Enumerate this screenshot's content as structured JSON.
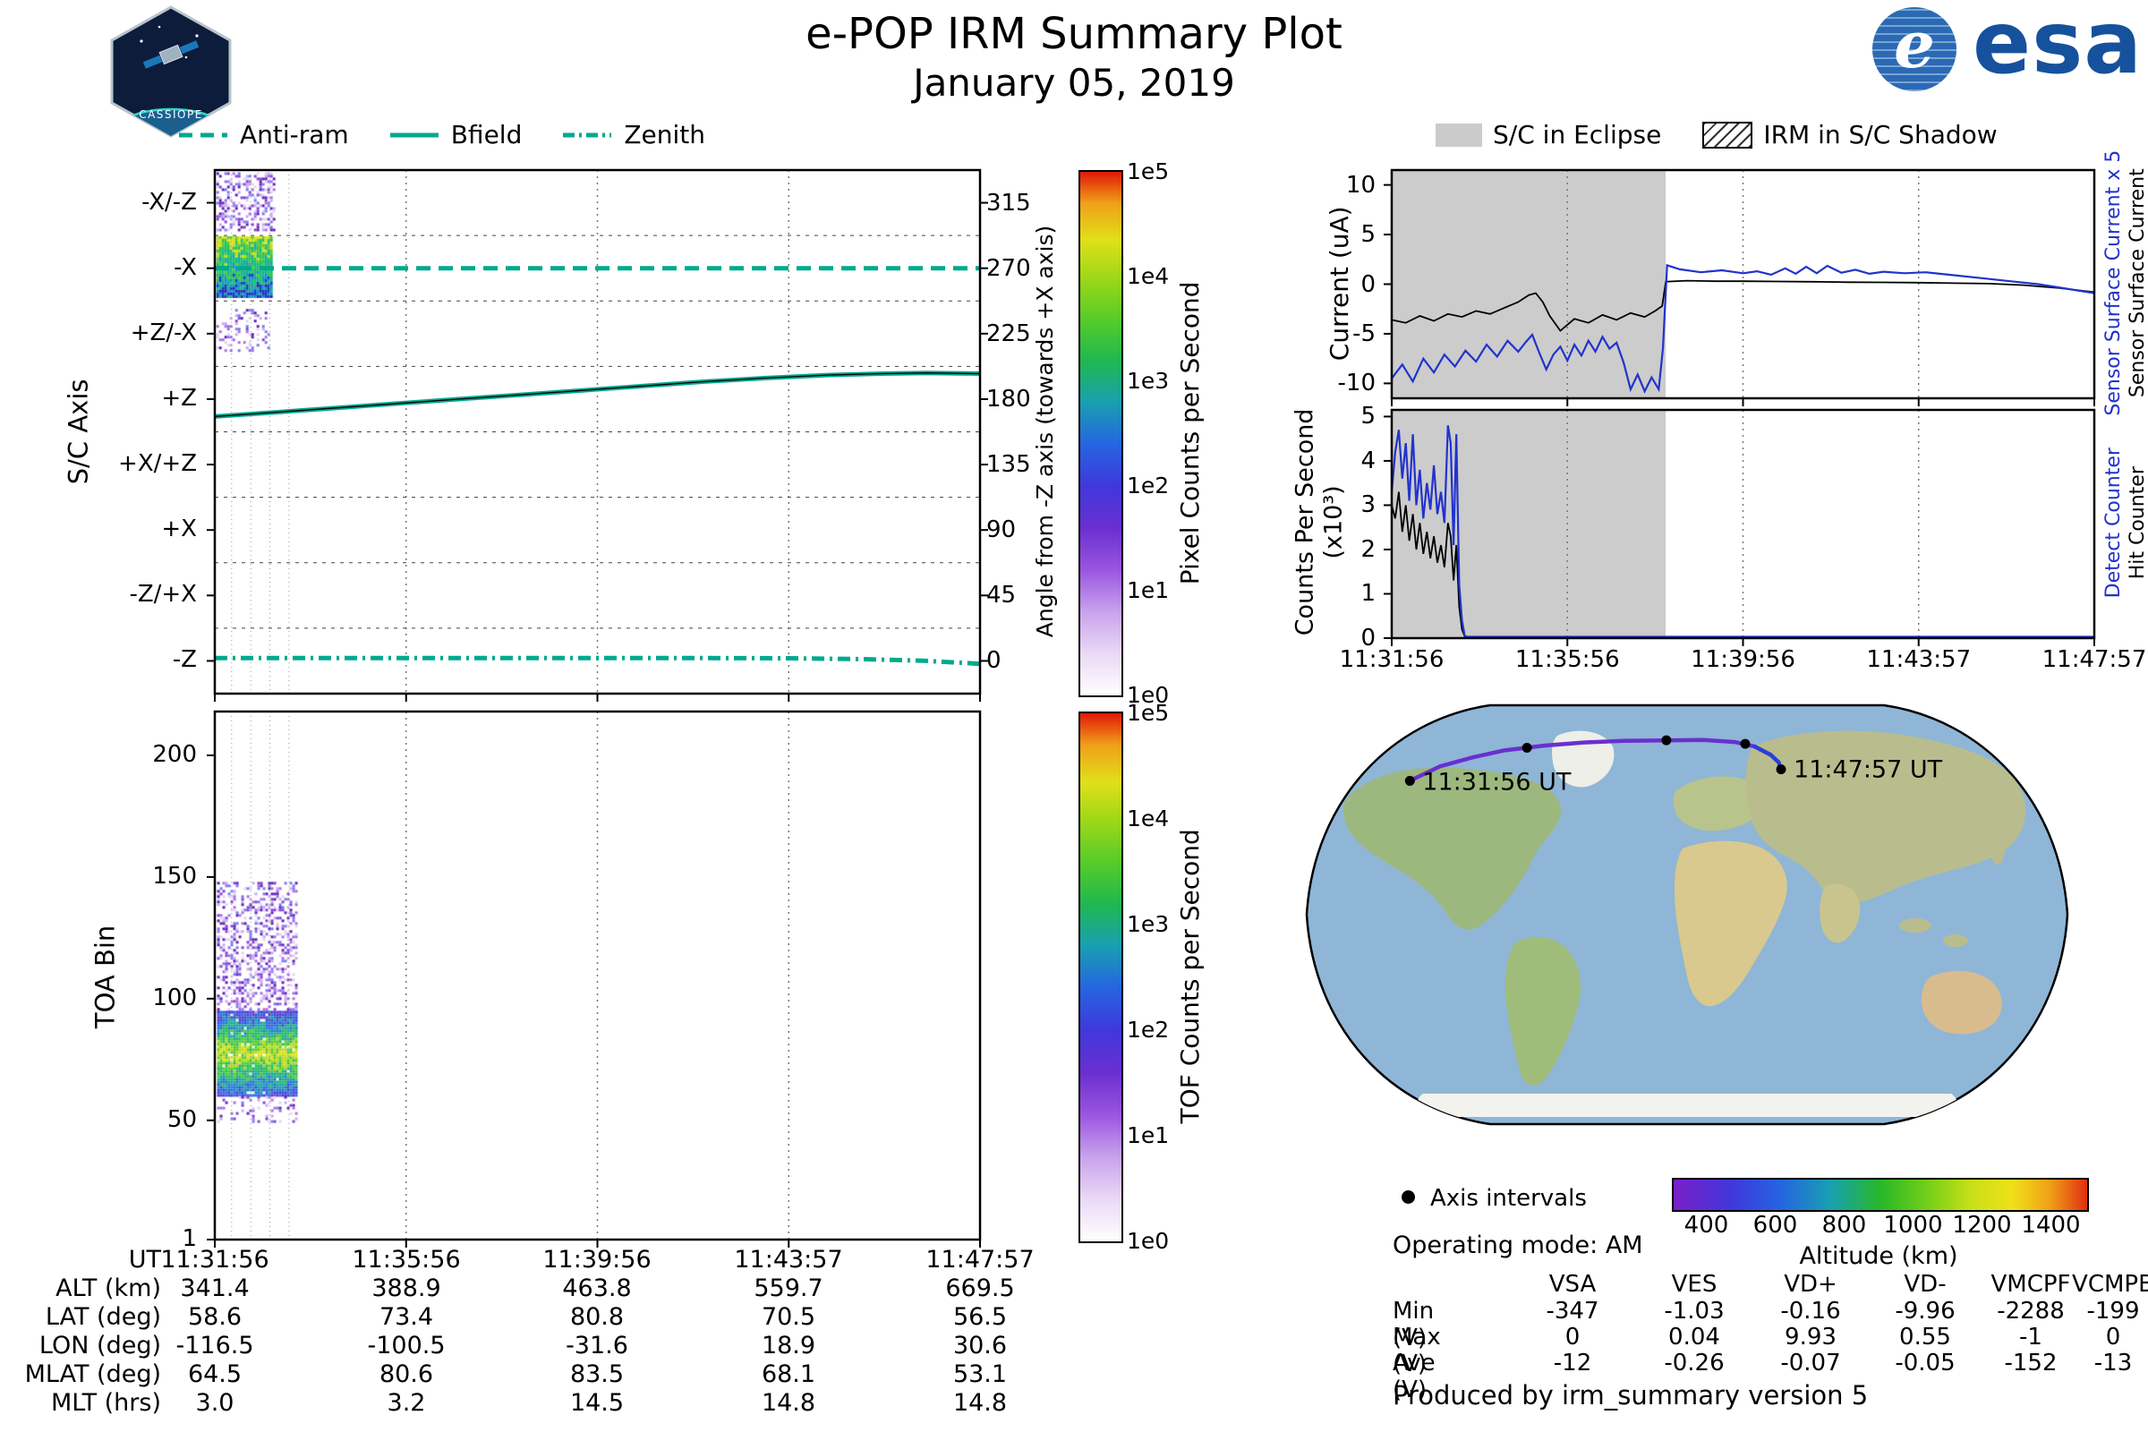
{
  "header": {
    "title": "e-POP IRM Summary Plot",
    "date": "January 05, 2019",
    "esa_e": "e",
    "esa_text": "esa",
    "patch_text": "CASSIOPE"
  },
  "colors": {
    "teal": "#00a98f",
    "line_blue": "#2233cc",
    "line_black": "#000000",
    "eclipse_gray": "#cccccc",
    "track_purple": "#6a2fd0",
    "track_blue": "#2a3fd8",
    "esa_blue": "#16519d",
    "ocean": "#8fb6d6"
  },
  "time_ticks": [
    "11:31:56",
    "11:35:56",
    "11:39:56",
    "11:43:57",
    "11:47:57"
  ],
  "left_legend": [
    {
      "label": "Anti-ram",
      "dash": "dashed"
    },
    {
      "label": "Bfield",
      "dash": "solid"
    },
    {
      "label": "Zenith",
      "dash": "dashdot"
    }
  ],
  "right_legend": [
    {
      "label": "S/C in Eclipse",
      "swatch": "eclipse"
    },
    {
      "label": "IRM in S/C Shadow",
      "swatch": "hatch"
    }
  ],
  "chart_data": [
    {
      "id": "sc_axis",
      "type": "line",
      "ylabel": "S/C Axis",
      "y2label": "Angle from -Z axis (towards +X axis)",
      "band_labels": [
        "-X/-Z",
        "-X",
        "+Z/-X",
        "+Z",
        "+X/+Z",
        "+X",
        "-Z/+X",
        "-Z"
      ],
      "y2_ticks": [
        "315",
        "270",
        "225",
        "180",
        "135",
        "90",
        "45",
        "0"
      ],
      "ylim": [
        -22.5,
        337.5
      ],
      "xtick_labels": [
        "11:31:56",
        "11:35:56",
        "11:39:56",
        "11:43:57",
        "11:47:57"
      ],
      "colorbar": {
        "label": "Pixel Coun­ts per Second",
        "ticks": [
          "1e5",
          "1e4",
          "1e3",
          "1e2",
          "1e1",
          "1e0"
        ]
      },
      "series": [
        {
          "name": "Anti-ram",
          "dash": "dashed",
          "color": "#00a98f",
          "width": 5,
          "x": [
            0,
            1
          ],
          "y": [
            270,
            270
          ]
        },
        {
          "name": "Bfield",
          "dash": "solid",
          "color": "#00a98f",
          "width": 5,
          "overlay": true,
          "x": [
            0,
            0.08,
            0.16,
            0.24,
            0.32,
            0.4,
            0.48,
            0.56,
            0.64,
            0.72,
            0.8,
            0.87,
            0.93,
            1
          ],
          "y": [
            168,
            171,
            174,
            177,
            180,
            183,
            186,
            189,
            192,
            194.5,
            196.5,
            197.5,
            198,
            197.5
          ]
        },
        {
          "name": "Zenith",
          "dash": "dashdot",
          "color": "#00a98f",
          "width": 5,
          "x": [
            0,
            0.2,
            0.4,
            0.6,
            0.75,
            0.85,
            0.93,
            1
          ],
          "y": [
            2,
            2,
            2,
            2,
            1.8,
            1.2,
            0,
            -2
          ]
        }
      ],
      "noise_patches": [
        {
          "x0": 0.002,
          "x1": 0.078,
          "v0": 296,
          "v1": 336,
          "palette": "purple",
          "density": 0.42
        },
        {
          "x0": 0.002,
          "x1": 0.074,
          "v0": 250,
          "v1": 292,
          "palette": "block",
          "density": 1.0,
          "layered": "v"
        },
        {
          "x0": 0.002,
          "x1": 0.07,
          "v0": 214,
          "v1": 242,
          "palette": "purple",
          "density": 0.3
        }
      ]
    },
    {
      "id": "toa",
      "type": "heatmap",
      "ylabel": "TOA Bin",
      "yticks": [
        200,
        150,
        100,
        50,
        1
      ],
      "ylim": [
        1,
        218
      ],
      "colorbar": {
        "label": "TOF Counts per Second",
        "ticks": [
          "1e5",
          "1e4",
          "1e3",
          "1e2",
          "1e1",
          "1e0"
        ]
      },
      "noise_patches": [
        {
          "x0": 0.003,
          "x1": 0.108,
          "v0": 95,
          "v1": 148,
          "palette": "purple",
          "density": 0.4
        },
        {
          "x0": 0.003,
          "x1": 0.108,
          "v0": 60,
          "v1": 95,
          "palette": "toa",
          "density": 0.97,
          "layered": "c"
        },
        {
          "x0": 0.003,
          "x1": 0.108,
          "v0": 50,
          "v1": 60,
          "palette": "purple",
          "density": 0.25
        }
      ]
    },
    {
      "id": "current",
      "type": "line",
      "ylabel": "Current (uA)",
      "yticks": [
        10,
        5,
        0,
        -5,
        -10
      ],
      "ylim": [
        -11.5,
        11.5
      ],
      "eclipse": [
        0,
        0.39
      ],
      "right_labels": [
        {
          "text": "Sensor Surface Current x 5",
          "color": "#2233cc"
        },
        {
          "text": "Sensor Surface Current",
          "color": "#000000"
        }
      ],
      "series": [
        {
          "name": "Sensor Surface Current",
          "color": "#000000",
          "width": 1.8,
          "x": [
            0,
            0.02,
            0.04,
            0.06,
            0.08,
            0.1,
            0.12,
            0.14,
            0.16,
            0.18,
            0.195,
            0.205,
            0.215,
            0.225,
            0.24,
            0.26,
            0.28,
            0.3,
            0.32,
            0.34,
            0.36,
            0.375,
            0.385,
            0.39,
            0.42,
            0.46,
            0.5,
            0.55,
            0.6,
            0.65,
            0.7,
            0.75,
            0.8,
            0.85,
            0.9,
            0.95,
            1.0
          ],
          "y": [
            -3.6,
            -3.9,
            -3.2,
            -3.7,
            -3.0,
            -3.3,
            -2.7,
            -3.0,
            -2.4,
            -1.8,
            -1.1,
            -0.9,
            -1.8,
            -3.2,
            -4.7,
            -3.5,
            -3.9,
            -3.1,
            -3.6,
            -2.9,
            -3.3,
            -2.7,
            -2.2,
            0.25,
            0.35,
            0.3,
            0.3,
            0.27,
            0.24,
            0.2,
            0.18,
            0.15,
            0.1,
            0.05,
            -0.1,
            -0.4,
            -0.8
          ]
        },
        {
          "name": "Sensor Surface Current x 5",
          "color": "#2233cc",
          "width": 2.2,
          "x": [
            0,
            0.015,
            0.03,
            0.045,
            0.06,
            0.075,
            0.09,
            0.105,
            0.12,
            0.135,
            0.15,
            0.165,
            0.18,
            0.19,
            0.2,
            0.21,
            0.22,
            0.23,
            0.24,
            0.25,
            0.26,
            0.27,
            0.28,
            0.29,
            0.3,
            0.31,
            0.32,
            0.33,
            0.34,
            0.35,
            0.36,
            0.37,
            0.38,
            0.386,
            0.392,
            0.41,
            0.44,
            0.47,
            0.5,
            0.52,
            0.54,
            0.56,
            0.575,
            0.59,
            0.605,
            0.62,
            0.64,
            0.66,
            0.68,
            0.7,
            0.73,
            0.76,
            0.8,
            0.84,
            0.88,
            0.92,
            0.96,
            1.0
          ],
          "y": [
            -9.5,
            -8.1,
            -9.8,
            -7.5,
            -8.9,
            -7.1,
            -8.3,
            -6.7,
            -7.8,
            -6.1,
            -7.3,
            -5.7,
            -6.8,
            -5.9,
            -5.1,
            -6.9,
            -8.6,
            -7.1,
            -6.3,
            -7.7,
            -6.1,
            -7.2,
            -5.7,
            -6.8,
            -5.3,
            -6.5,
            -5.9,
            -7.9,
            -10.6,
            -9.1,
            -10.8,
            -9.4,
            -10.6,
            -6.5,
            1.9,
            1.5,
            1.2,
            1.4,
            1.1,
            1.3,
            0.95,
            1.6,
            1.05,
            1.75,
            1.1,
            1.85,
            1.15,
            1.45,
            1.05,
            1.25,
            1.1,
            1.2,
            0.9,
            0.6,
            0.3,
            0.0,
            -0.45,
            -0.9
          ]
        }
      ]
    },
    {
      "id": "counts",
      "type": "line",
      "ylabel": "Counts Per Second (x10³)",
      "yticks": [
        0,
        1,
        2,
        3,
        4,
        5
      ],
      "ylim": [
        0,
        5.15
      ],
      "eclipse": [
        0,
        0.39
      ],
      "right_labels": [
        {
          "text": "Detect Counter",
          "color": "#2233cc"
        },
        {
          "text": "Hit Counter",
          "color": "#000000"
        }
      ],
      "series": [
        {
          "name": "Hit Counter",
          "color": "#000000",
          "width": 1.8,
          "x": [
            0,
            0.005,
            0.01,
            0.015,
            0.02,
            0.025,
            0.03,
            0.035,
            0.04,
            0.045,
            0.05,
            0.055,
            0.06,
            0.065,
            0.07,
            0.075,
            0.08,
            0.084,
            0.088,
            0.092,
            0.096,
            0.1,
            0.104,
            0.108,
            0.112,
            0.15,
            0.3,
            0.5,
            0.7,
            0.9,
            1.0
          ],
          "y": [
            3.0,
            2.7,
            3.3,
            2.4,
            3.0,
            2.2,
            2.8,
            2.0,
            2.6,
            1.9,
            2.4,
            1.8,
            2.3,
            1.7,
            2.1,
            1.6,
            2.6,
            2.3,
            1.3,
            2.1,
            0.7,
            0.2,
            0.03,
            0.02,
            0.02,
            0.02,
            0.02,
            0.02,
            0.02,
            0.02,
            0.02
          ]
        },
        {
          "name": "Detect Counter",
          "color": "#2233cc",
          "width": 2.2,
          "x": [
            0,
            0.005,
            0.01,
            0.015,
            0.02,
            0.025,
            0.03,
            0.035,
            0.04,
            0.045,
            0.05,
            0.055,
            0.06,
            0.065,
            0.07,
            0.075,
            0.08,
            0.084,
            0.088,
            0.092,
            0.096,
            0.1,
            0.104,
            0.108,
            0.112,
            0.15,
            0.3,
            0.5,
            0.7,
            0.9,
            1.0
          ],
          "y": [
            3.3,
            4.2,
            4.7,
            3.6,
            4.4,
            3.1,
            4.6,
            3.0,
            3.8,
            2.7,
            3.5,
            2.9,
            3.9,
            2.8,
            3.3,
            2.6,
            4.8,
            4.4,
            2.1,
            4.6,
            1.2,
            0.4,
            0.05,
            0.03,
            0.03,
            0.03,
            0.03,
            0.03,
            0.03,
            0.03,
            0.03
          ]
        }
      ]
    }
  ],
  "ephemeris": {
    "rows": [
      {
        "label": "UT",
        "values": [
          "11:31:56",
          "11:35:56",
          "11:39:56",
          "11:43:57",
          "11:47:57"
        ]
      },
      {
        "label": "ALT (km)",
        "values": [
          "341.4",
          "388.9",
          "463.8",
          "559.7",
          "669.5"
        ]
      },
      {
        "label": "LAT (deg)",
        "values": [
          "58.6",
          "73.4",
          "80.8",
          "70.5",
          "56.5"
        ]
      },
      {
        "label": "LON (deg)",
        "values": [
          "-116.5",
          "-100.5",
          "-31.6",
          "18.9",
          "30.6"
        ]
      },
      {
        "label": "MLAT (deg)",
        "values": [
          "64.5",
          "80.6",
          "83.5",
          "68.1",
          "53.1"
        ]
      },
      {
        "label": "MLT (hrs)",
        "values": [
          "3.0",
          "3.2",
          "14.5",
          "14.8",
          "14.8"
        ]
      }
    ]
  },
  "voltages": {
    "columns": [
      "VSA",
      "VES",
      "VD+",
      "VD-",
      "VMCPF",
      "VCMPB"
    ],
    "rows": [
      {
        "label": "Min (V)",
        "values": [
          "-347",
          "-1.03",
          "-0.16",
          "-9.96",
          "-2288",
          "-199"
        ]
      },
      {
        "label": "Max (V)",
        "values": [
          "0",
          "0.04",
          "9.93",
          "0.55",
          "-1",
          "0"
        ]
      },
      {
        "label": "Ave (V)",
        "values": [
          "-12",
          "-0.26",
          "-0.07",
          "-0.05",
          "-152",
          "-13"
        ]
      }
    ]
  },
  "map": {
    "start_label": "11:31:56 UT",
    "end_label": "11:47:57 UT",
    "axis_intervals_label": "Axis intervals",
    "altitude_label": "Altitude (km)",
    "altitude_ticks": [
      400,
      600,
      800,
      1000,
      1200,
      1400
    ],
    "altitude_range": [
      300,
      1500
    ],
    "track": {
      "points": [
        [
          0.152,
          0.196
        ],
        [
          0.19,
          0.163
        ],
        [
          0.23,
          0.143
        ],
        [
          0.27,
          0.127
        ],
        [
          0.32,
          0.116
        ],
        [
          0.37,
          0.109
        ],
        [
          0.42,
          0.105
        ],
        [
          0.474,
          0.104
        ],
        [
          0.52,
          0.103
        ],
        [
          0.56,
          0.108
        ],
        [
          0.585,
          0.118
        ],
        [
          0.605,
          0.137
        ],
        [
          0.615,
          0.154
        ],
        [
          0.618,
          0.17
        ]
      ],
      "dots": [
        [
          0.152,
          0.196
        ],
        [
          0.299,
          0.121
        ],
        [
          0.474,
          0.104
        ],
        [
          0.573,
          0.112
        ],
        [
          0.618,
          0.17
        ]
      ]
    }
  },
  "info": {
    "operating_mode": "Operating mode: AM",
    "produced_by": "Produced by irm_summary version 5"
  }
}
